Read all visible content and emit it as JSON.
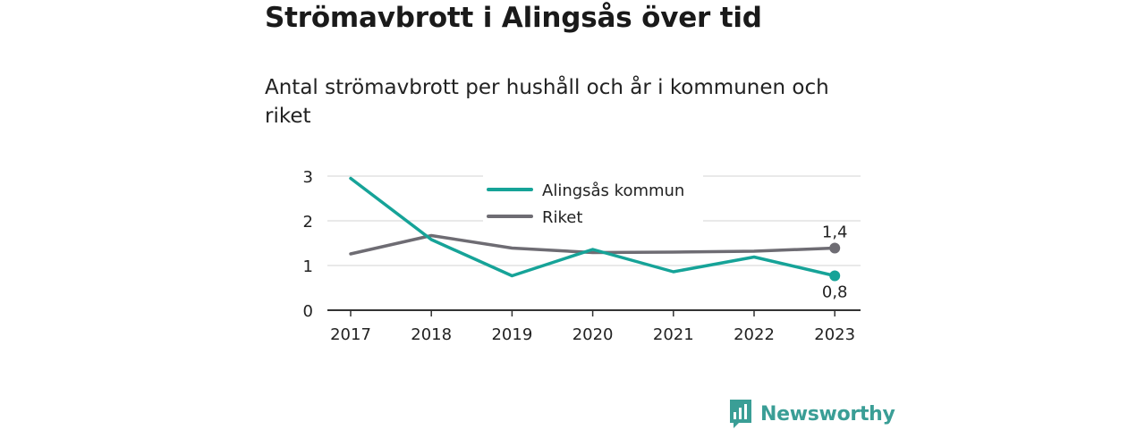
{
  "header": {
    "title": "Strömavbrott i Alingsås över tid",
    "subtitle": "Antal strömavbrott per hushåll och år i kommunen och riket"
  },
  "brand": {
    "name": "Newsworthy",
    "icon": "newsworthy-logo-icon",
    "color": "#3a9e96"
  },
  "chart_data": {
    "type": "line",
    "categories": [
      "2017",
      "2018",
      "2019",
      "2020",
      "2021",
      "2022",
      "2023"
    ],
    "y_ticks": [
      "0",
      "1",
      "2",
      "3"
    ],
    "ylim": [
      0,
      3.1
    ],
    "grid": true,
    "legend_position": "top-center",
    "series": [
      {
        "name": "Alingsås kommun",
        "color": "#16a398",
        "values": [
          2.95,
          1.58,
          0.77,
          1.36,
          0.86,
          1.19,
          0.77
        ],
        "end_label": "0,8",
        "end_label_side": "below"
      },
      {
        "name": "Riket",
        "color": "#6e6c73",
        "values": [
          1.26,
          1.67,
          1.39,
          1.29,
          1.3,
          1.32,
          1.39
        ],
        "end_label": "1,4",
        "end_label_side": "above"
      }
    ]
  }
}
